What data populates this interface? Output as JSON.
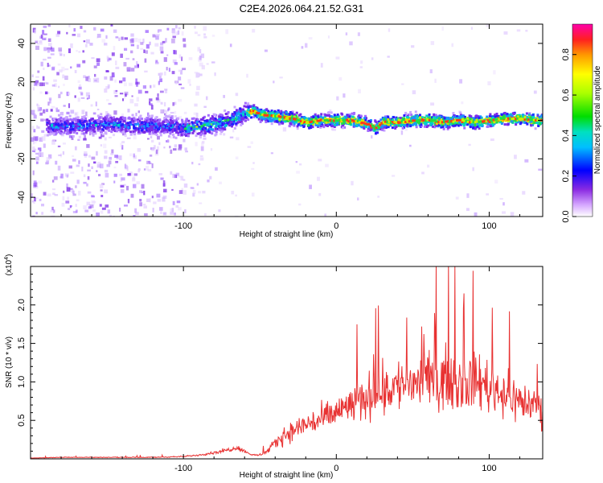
{
  "title": "C2E4.2026.064.21.52.G31",
  "chart_data": [
    {
      "type": "heatmap",
      "xlabel": "Height of straight line (km)",
      "ylabel": "Frequency (Hz)",
      "xlim": [
        -200,
        135
      ],
      "ylim": [
        -50,
        50
      ],
      "x_ticks": [
        -100,
        0,
        100
      ],
      "y_ticks": [
        -40,
        -20,
        0,
        20,
        40
      ],
      "colorbar": {
        "label": "Normalized spectral amplitude",
        "range": [
          0,
          0.95
        ],
        "ticks": [
          0.0,
          0.2,
          0.4,
          0.6,
          0.8
        ]
      },
      "ridge": {
        "x": [
          -185,
          -170,
          -150,
          -130,
          -110,
          -100,
          -90,
          -80,
          -70,
          -60,
          -55,
          -50,
          -40,
          -30,
          -20,
          -10,
          0,
          10,
          20,
          25,
          30,
          40,
          50,
          60,
          70,
          80,
          90,
          100,
          110,
          120,
          130,
          135
        ],
        "y": [
          -3,
          -3,
          -2,
          -3,
          -3,
          -4,
          -3,
          -2,
          0,
          4,
          5,
          3,
          2,
          1,
          -1,
          0,
          0,
          0,
          -2,
          -4,
          -1,
          -1,
          0,
          0,
          -1,
          0,
          -1,
          0,
          1,
          1,
          0,
          0
        ]
      }
    },
    {
      "type": "line",
      "xlabel": "Height of straight line (km)",
      "ylabel": "SNR (10 * v/v)",
      "exponent_label": "(x10",
      "exponent_power": "4",
      "xlim": [
        -200,
        135
      ],
      "ylim": [
        0,
        2.5
      ],
      "x_ticks": [
        -100,
        0,
        100
      ],
      "y_ticks": [
        0.5,
        1.0,
        1.5,
        2.0
      ],
      "color": "#e83232",
      "series": [
        {
          "name": "SNR",
          "x": [
            -200,
            -180,
            -160,
            -140,
            -120,
            -100,
            -90,
            -80,
            -70,
            -65,
            -60,
            -55,
            -50,
            -45,
            -40,
            -35,
            -30,
            -20,
            -10,
            0,
            10,
            20,
            30,
            40,
            50,
            60,
            70,
            80,
            90,
            95,
            100,
            110,
            120,
            130,
            135
          ],
          "y": [
            0.01,
            0.02,
            0.02,
            0.02,
            0.02,
            0.03,
            0.05,
            0.08,
            0.12,
            0.15,
            0.1,
            0.05,
            0.05,
            0.1,
            0.2,
            0.3,
            0.35,
            0.45,
            0.5,
            0.6,
            0.7,
            0.8,
            0.9,
            0.95,
            1.0,
            1.0,
            1.05,
            1.0,
            1.0,
            1.0,
            0.95,
            0.85,
            0.75,
            0.7,
            0.65
          ]
        }
      ]
    }
  ]
}
